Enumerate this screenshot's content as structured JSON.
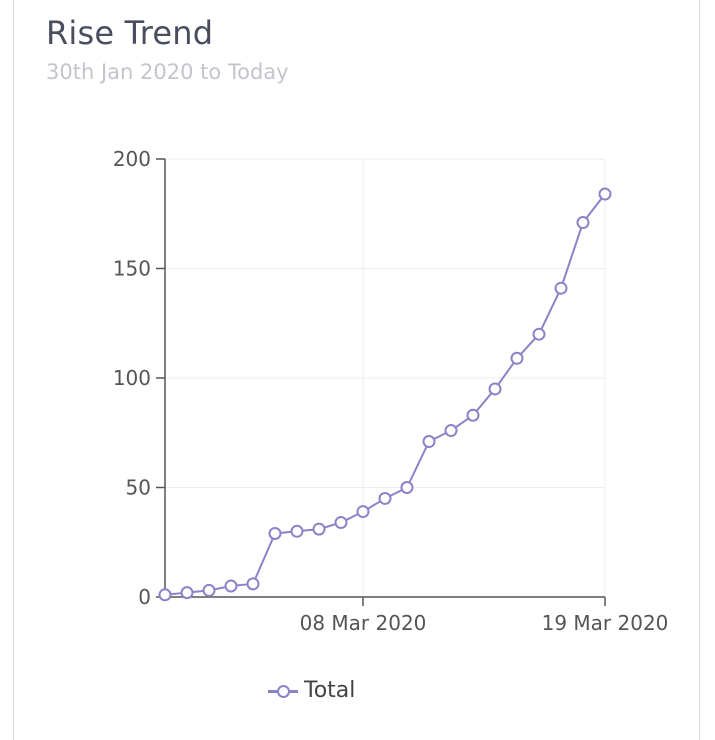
{
  "card": {
    "title": "Rise Trend",
    "subtitle": "30th Jan 2020 to Today"
  },
  "colors": {
    "series": "#8b83c8",
    "axis": "#555555",
    "grid": "#eeeeee",
    "title": "#4a4d5e",
    "subtitle": "#c4c5cc"
  },
  "chart_data": {
    "type": "line",
    "title": "",
    "xlabel": "",
    "ylabel": "",
    "ylim": [
      0,
      200
    ],
    "y_ticks": [
      0,
      50,
      100,
      150,
      200
    ],
    "x_tick_labels": [
      "08 Mar 2020",
      "19 Mar 2020"
    ],
    "grid": true,
    "legend_position": "bottom",
    "series": [
      {
        "name": "Total",
        "values": [
          1,
          2,
          3,
          5,
          6,
          29,
          30,
          31,
          34,
          39,
          45,
          50,
          71,
          76,
          83,
          95,
          109,
          120,
          141,
          171,
          184
        ]
      }
    ]
  }
}
